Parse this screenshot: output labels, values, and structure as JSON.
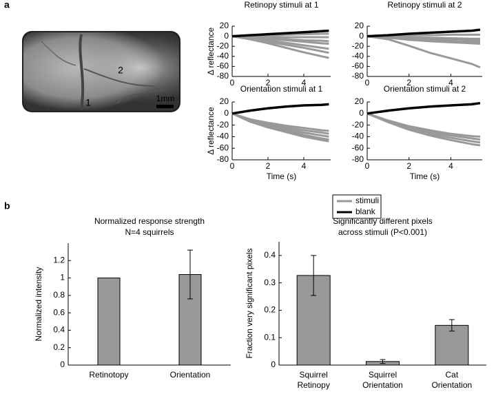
{
  "panel_labels": [
    "a",
    "b"
  ],
  "image": {
    "labels": [
      "1",
      "2"
    ],
    "scale_bar": "1mm"
  },
  "legend": [
    {
      "name": "stimuli",
      "color": "#999999"
    },
    {
      "name": "blank",
      "color": "#000000"
    }
  ],
  "chart_data": [
    {
      "type": "line",
      "title": "Retinopy stimuli at 1",
      "ylabel": "Δ reflectance",
      "x": [
        0,
        1,
        2,
        3,
        4,
        5,
        5.4
      ],
      "xlim": [
        0,
        5.5
      ],
      "xticks": [
        0,
        2,
        4
      ],
      "ylim": [
        -80,
        20
      ],
      "yticks": [
        -80,
        -60,
        -40,
        -20,
        0,
        20
      ],
      "series": [
        {
          "color": "#999999",
          "width": 3,
          "values": [
            0,
            1,
            2,
            3,
            4,
            5,
            5
          ]
        },
        {
          "color": "#999999",
          "width": 3,
          "values": [
            0,
            -1,
            -1,
            -2,
            -2,
            -2,
            -2
          ]
        },
        {
          "color": "#999999",
          "width": 3,
          "values": [
            0,
            -2,
            -4,
            -6,
            -8,
            -9,
            -10
          ]
        },
        {
          "color": "#999999",
          "width": 3,
          "values": [
            0,
            -2,
            -5,
            -8,
            -11,
            -14,
            -15
          ]
        },
        {
          "color": "#999999",
          "width": 3,
          "values": [
            0,
            -3,
            -8,
            -13,
            -18,
            -23,
            -25
          ]
        },
        {
          "color": "#999999",
          "width": 3,
          "values": [
            0,
            -5,
            -11,
            -17,
            -23,
            -30,
            -33
          ]
        },
        {
          "color": "#999999",
          "width": 3,
          "values": [
            0,
            -6,
            -14,
            -23,
            -32,
            -40,
            -43
          ]
        },
        {
          "color": "#000000",
          "width": 3.5,
          "values": [
            0,
            2,
            4,
            6,
            8,
            10,
            11
          ]
        }
      ]
    },
    {
      "type": "line",
      "title": "Retinopy stimuli at 2",
      "x": [
        0,
        1,
        2,
        3,
        4,
        5,
        5.4
      ],
      "xlim": [
        0,
        5.5
      ],
      "xticks": [
        0,
        2,
        4
      ],
      "ylim": [
        -80,
        20
      ],
      "yticks": [
        -80,
        -60,
        -40,
        -20,
        0,
        20
      ],
      "series": [
        {
          "color": "#999999",
          "width": 3,
          "values": [
            0,
            1,
            2,
            2,
            3,
            3,
            3
          ]
        },
        {
          "color": "#999999",
          "width": 3,
          "values": [
            0,
            -1,
            -2,
            -3,
            -4,
            -5,
            -5
          ]
        },
        {
          "color": "#999999",
          "width": 3,
          "values": [
            0,
            -2,
            -4,
            -5,
            -6,
            -7,
            -8
          ]
        },
        {
          "color": "#999999",
          "width": 3,
          "values": [
            0,
            -3,
            -6,
            -8,
            -10,
            -11,
            -12
          ]
        },
        {
          "color": "#999999",
          "width": 3,
          "values": [
            0,
            -3,
            -7,
            -10,
            -12,
            -14,
            -15
          ]
        },
        {
          "color": "#999999",
          "width": 3,
          "values": [
            0,
            -6,
            -19,
            -33,
            -44,
            -55,
            -62
          ]
        },
        {
          "color": "#000000",
          "width": 3.5,
          "values": [
            0,
            2,
            5,
            7,
            9,
            11,
            13
          ]
        }
      ]
    },
    {
      "type": "line",
      "title": "Orientation stimuli at 1",
      "xlabel": "Time (s)",
      "ylabel": "Δ reflectance",
      "x": [
        0,
        1,
        2,
        3,
        4,
        5,
        5.4
      ],
      "xlim": [
        0,
        5.5
      ],
      "xticks": [
        0,
        2,
        4
      ],
      "ylim": [
        -80,
        20
      ],
      "yticks": [
        -80,
        -60,
        -40,
        -20,
        0,
        20
      ],
      "series": [
        {
          "color": "#999999",
          "width": 3,
          "values": [
            0,
            -10,
            -16,
            -21,
            -25,
            -29,
            -30
          ]
        },
        {
          "color": "#999999",
          "width": 3,
          "values": [
            0,
            -11,
            -18,
            -24,
            -29,
            -33,
            -35
          ]
        },
        {
          "color": "#999999",
          "width": 3,
          "values": [
            0,
            -12,
            -20,
            -27,
            -33,
            -38,
            -40
          ]
        },
        {
          "color": "#999999",
          "width": 3,
          "values": [
            0,
            -13,
            -22,
            -30,
            -37,
            -43,
            -45
          ]
        },
        {
          "color": "#999999",
          "width": 3,
          "values": [
            0,
            -14,
            -24,
            -32,
            -40,
            -46,
            -48
          ]
        },
        {
          "color": "#000000",
          "width": 3.5,
          "values": [
            0,
            5,
            9,
            12,
            14,
            15,
            16
          ]
        }
      ]
    },
    {
      "type": "line",
      "title": "Orientation stimuli at 2",
      "xlabel": "Time (s)",
      "x": [
        0,
        1,
        2,
        3,
        4,
        5,
        5.4
      ],
      "xlim": [
        0,
        5.5
      ],
      "xticks": [
        0,
        2,
        4
      ],
      "ylim": [
        -80,
        20
      ],
      "yticks": [
        -80,
        -60,
        -40,
        -20,
        0,
        20
      ],
      "series": [
        {
          "color": "#999999",
          "width": 3,
          "values": [
            0,
            -12,
            -22,
            -29,
            -35,
            -39,
            -40
          ]
        },
        {
          "color": "#999999",
          "width": 3,
          "values": [
            0,
            -13,
            -24,
            -32,
            -38,
            -43,
            -45
          ]
        },
        {
          "color": "#999999",
          "width": 3,
          "values": [
            0,
            -14,
            -26,
            -35,
            -42,
            -48,
            -50
          ]
        },
        {
          "color": "#999999",
          "width": 3,
          "values": [
            0,
            -15,
            -28,
            -38,
            -46,
            -53,
            -55
          ]
        },
        {
          "color": "#000000",
          "width": 3.5,
          "values": [
            0,
            5,
            9,
            12,
            14,
            16,
            18
          ]
        }
      ]
    },
    {
      "type": "bar",
      "title": "Normalized response strength",
      "subtitle": "N=4 squirrels",
      "ylabel": "Normalized intensity",
      "categories": [
        [
          "Retinotopy"
        ],
        [
          "Orientation"
        ]
      ],
      "values": [
        1,
        1.04
      ],
      "errors": [
        0,
        0.28
      ],
      "color": "#999999",
      "ylim": [
        0,
        1.4
      ],
      "yticks": [
        0,
        0.2,
        0.4,
        0.6,
        0.8,
        1,
        1.2
      ]
    },
    {
      "type": "bar",
      "title": "Significantly different pixels",
      "subtitle": "across stimuli (P<0.001)",
      "ylabel": "Fraction very significant pixels",
      "categories": [
        [
          "Squirrel",
          "Retinopy"
        ],
        [
          "Squirrel",
          "Orientation"
        ],
        [
          "Cat",
          "Orientation"
        ]
      ],
      "values": [
        0.327,
        0.013,
        0.145
      ],
      "errors": [
        0.073,
        0.007,
        0.021
      ],
      "color": "#999999",
      "reference_line": 0,
      "ylim": [
        0,
        0.45
      ],
      "yticks": [
        0,
        0.1,
        0.2,
        0.3,
        0.4
      ]
    }
  ]
}
